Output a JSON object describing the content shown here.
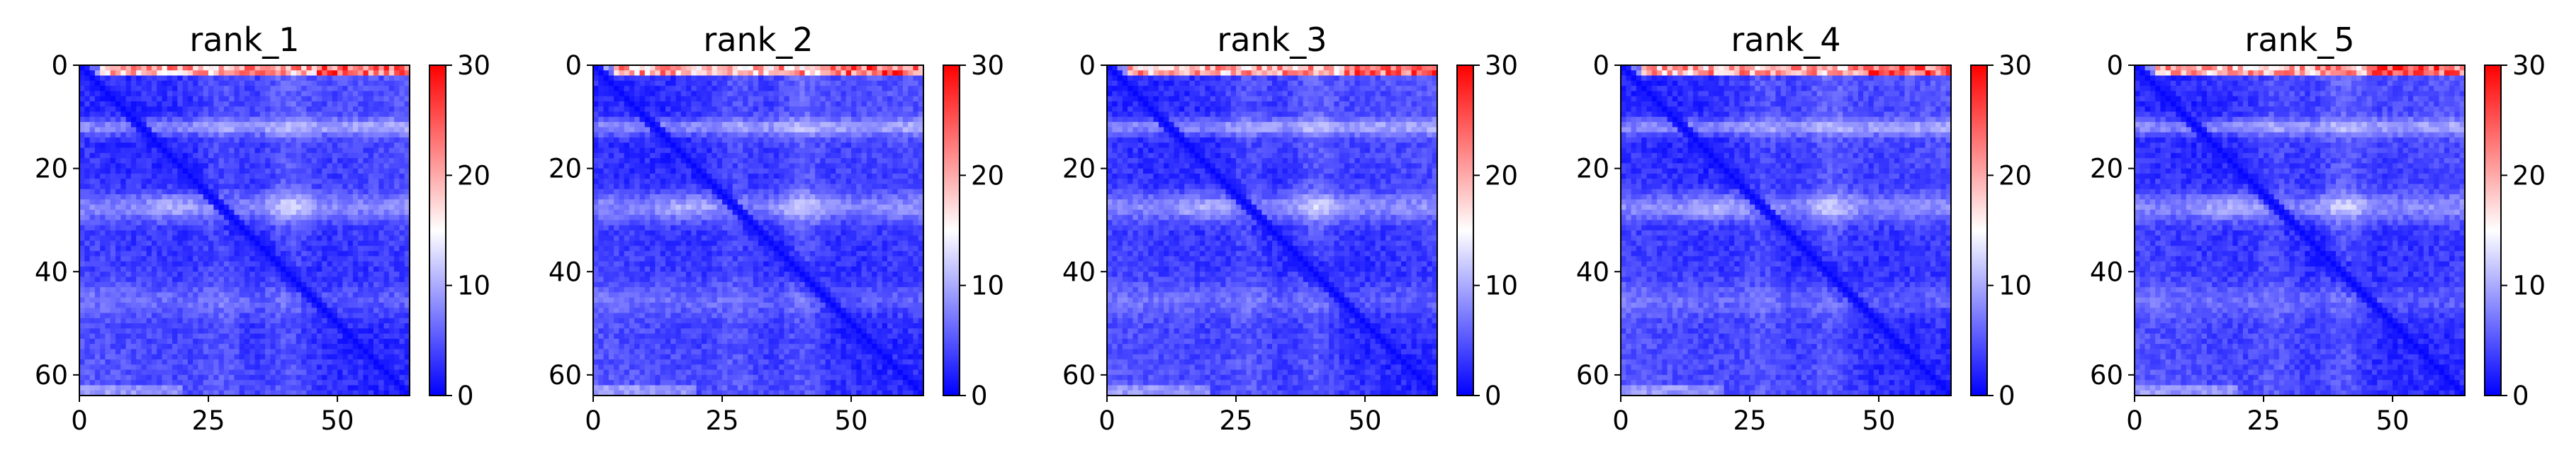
{
  "chart_data": [
    {
      "type": "heatmap",
      "title": "rank_1",
      "n": 64,
      "xlim": [
        0,
        64
      ],
      "ylim": [
        64,
        0
      ],
      "xticks": [
        "0",
        "25",
        "50"
      ],
      "yticks": [
        "0",
        "20",
        "40",
        "60"
      ],
      "colorbar": {
        "ticks": [
          "0",
          "10",
          "20",
          "30"
        ],
        "vmin": 0,
        "vmax": 30,
        "colormap": "bwr"
      },
      "xlabel": "",
      "ylabel": ""
    },
    {
      "type": "heatmap",
      "title": "rank_2",
      "n": 64,
      "xlim": [
        0,
        64
      ],
      "ylim": [
        64,
        0
      ],
      "xticks": [
        "0",
        "25",
        "50"
      ],
      "yticks": [
        "0",
        "20",
        "40",
        "60"
      ],
      "colorbar": {
        "ticks": [
          "0",
          "10",
          "20",
          "30"
        ],
        "vmin": 0,
        "vmax": 30,
        "colormap": "bwr"
      },
      "xlabel": "",
      "ylabel": ""
    },
    {
      "type": "heatmap",
      "title": "rank_3",
      "n": 64,
      "xlim": [
        0,
        64
      ],
      "ylim": [
        64,
        0
      ],
      "xticks": [
        "0",
        "25",
        "50"
      ],
      "yticks": [
        "0",
        "20",
        "40",
        "60"
      ],
      "colorbar": {
        "ticks": [
          "0",
          "10",
          "20",
          "30"
        ],
        "vmin": 0,
        "vmax": 30,
        "colormap": "bwr"
      },
      "xlabel": "",
      "ylabel": ""
    },
    {
      "type": "heatmap",
      "title": "rank_4",
      "n": 64,
      "xlim": [
        0,
        64
      ],
      "ylim": [
        64,
        0
      ],
      "xticks": [
        "0",
        "25",
        "50"
      ],
      "yticks": [
        "0",
        "20",
        "40",
        "60"
      ],
      "colorbar": {
        "ticks": [
          "0",
          "10",
          "20",
          "30"
        ],
        "vmin": 0,
        "vmax": 30,
        "colormap": "bwr"
      },
      "xlabel": "",
      "ylabel": ""
    },
    {
      "type": "heatmap",
      "title": "rank_5",
      "n": 64,
      "xlim": [
        0,
        64
      ],
      "ylim": [
        64,
        0
      ],
      "xticks": [
        "0",
        "25",
        "50"
      ],
      "yticks": [
        "0",
        "20",
        "40",
        "60"
      ],
      "colorbar": {
        "ticks": [
          "0",
          "10",
          "20",
          "30"
        ],
        "vmin": 0,
        "vmax": 30,
        "colormap": "bwr"
      },
      "xlabel": "",
      "ylabel": ""
    }
  ],
  "colors": {
    "low": "#0000ff",
    "mid": "#ffffff",
    "high": "#ff0000"
  }
}
